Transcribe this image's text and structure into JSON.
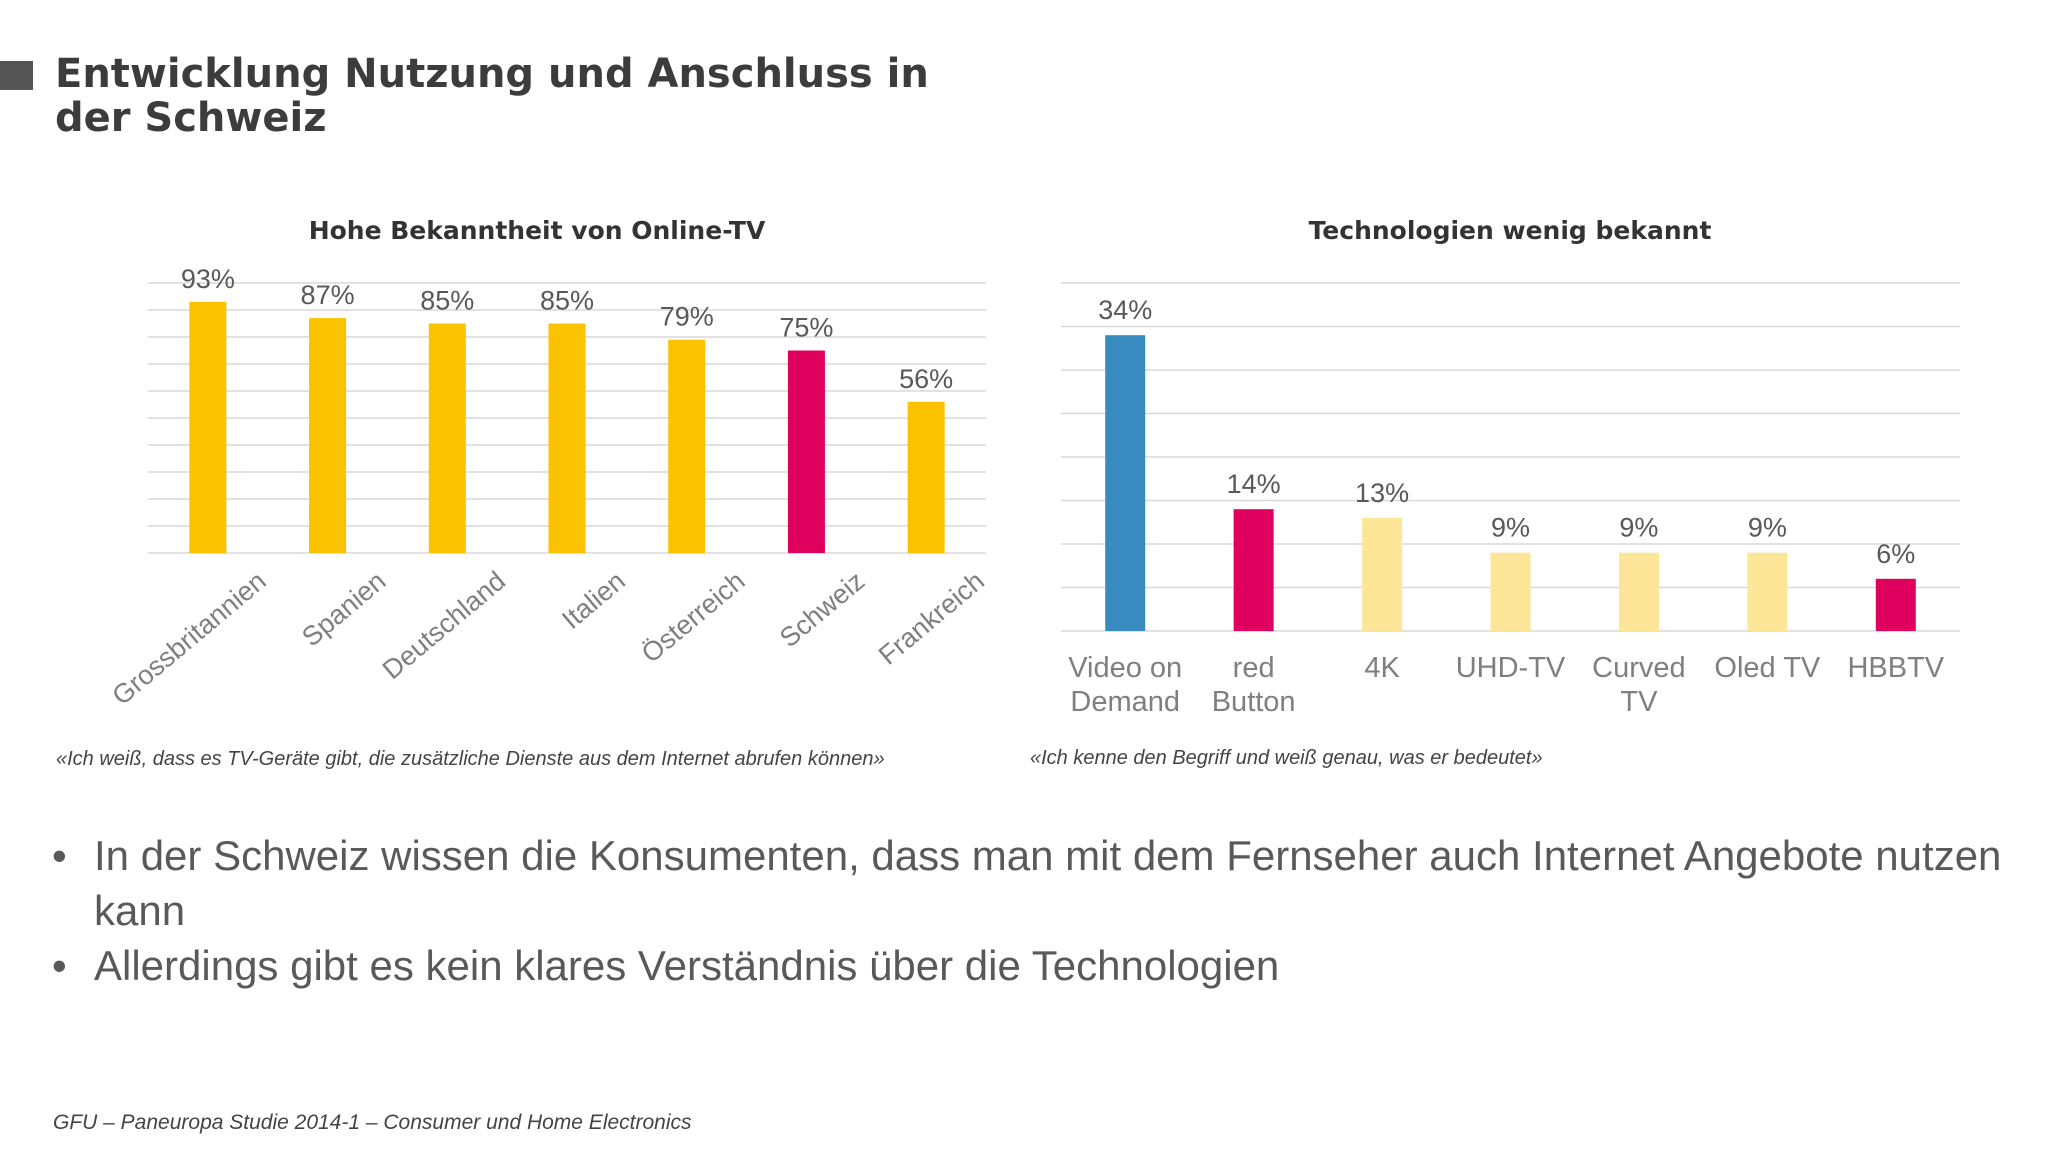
{
  "slide": {
    "title": "Entwicklung Nutzung und Anschluss in der Schweiz",
    "bullets": [
      "In der Schweiz wissen die Konsumenten, dass man mit dem Fernseher auch Internet Angebote nutzen kann",
      "Allerdings gibt es kein klares Verständnis über die Technologien"
    ],
    "bullet_symbol": "•",
    "footer": "GFU – Paneuropa Studie 2014-1 – Consumer und Home Electronics",
    "colors": {
      "title_marker": "#555555",
      "gold": "#FBC200",
      "magenta": "#E0005E",
      "blue": "#378BBF",
      "pale_yellow": "#FEE699",
      "grid": "#D9D9D9"
    }
  },
  "chart_data": [
    {
      "type": "bar",
      "title": "Hohe Bekanntheit von Online-TV",
      "categories": [
        "Grossbritannien",
        "Spanien",
        "Deutschland",
        "Italien",
        "Österreich",
        "Schweiz",
        "Frankreich"
      ],
      "values": [
        93,
        87,
        85,
        85,
        79,
        75,
        56
      ],
      "data_labels": [
        "93%",
        "87%",
        "85%",
        "85%",
        "79%",
        "75%",
        "56%"
      ],
      "bar_colors": [
        "#FBC200",
        "#FBC200",
        "#FBC200",
        "#FBC200",
        "#FBC200",
        "#E0005E",
        "#FBC200"
      ],
      "ylim": [
        0,
        100
      ],
      "grid": true,
      "note": "«Ich weiß, dass es TV-Geräte gibt, die zusätzliche Dienste aus dem Internet abrufen können»"
    },
    {
      "type": "bar",
      "title": "Technologien wenig bekannt",
      "categories": [
        "Video on Demand",
        "red Button",
        "4K",
        "UHD-TV",
        "Curved TV",
        "Oled TV",
        "HBBTV"
      ],
      "category_lines": [
        [
          "Video on",
          "Demand"
        ],
        [
          "red",
          "Button"
        ],
        [
          "4K"
        ],
        [
          "UHD-TV"
        ],
        [
          "Curved",
          "TV"
        ],
        [
          "Oled TV"
        ],
        [
          "HBBTV"
        ]
      ],
      "values": [
        34,
        14,
        13,
        9,
        9,
        9,
        6
      ],
      "data_labels": [
        "34%",
        "14%",
        "13%",
        "9%",
        "9%",
        "9%",
        "6%"
      ],
      "bar_colors": [
        "#378BBF",
        "#E0005E",
        "#FEE699",
        "#FEE699",
        "#FEE699",
        "#FEE699",
        "#E0005E"
      ],
      "ylim": [
        0,
        40
      ],
      "grid": true,
      "note": "«Ich kenne den Begriff und weiß genau, was er bedeutet»"
    }
  ]
}
